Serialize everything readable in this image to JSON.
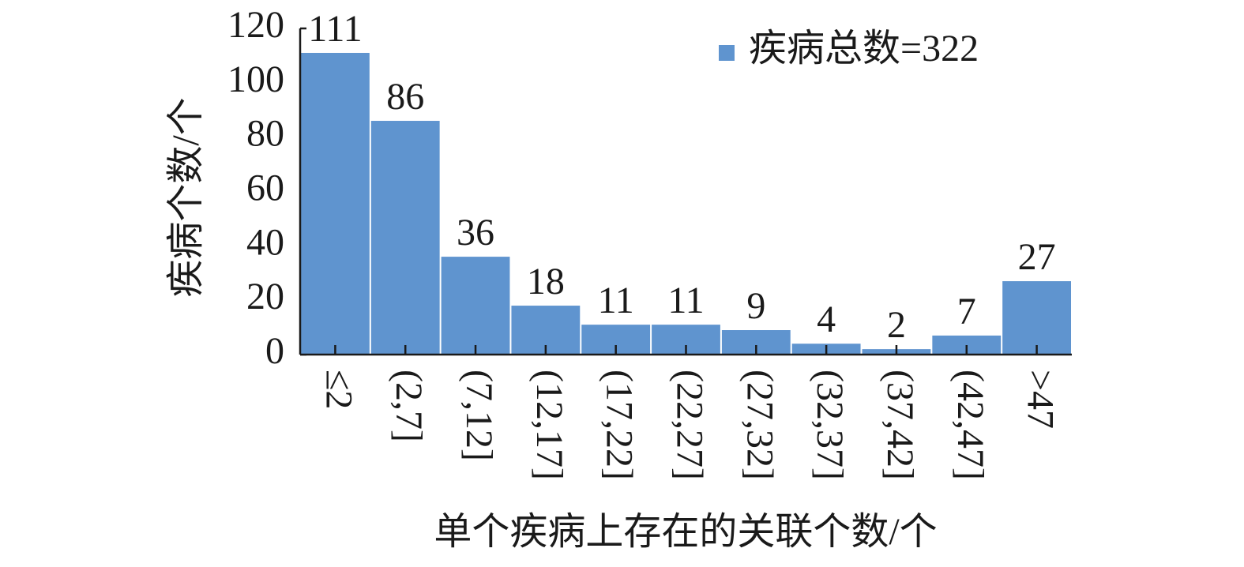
{
  "chart_data": {
    "type": "bar",
    "x_label": "单个疾病上存在的关联个数/个",
    "y_label": "疾病个数/个",
    "categories": [
      "≤2",
      "(2,7]",
      "(7,12]",
      "(12,17]",
      "(17,22]",
      "(22,27]",
      "(27,32]",
      "(32,37]",
      "(37,42]",
      "(42,47]",
      ">47"
    ],
    "series": [
      {
        "name": "疾病总数=322",
        "color": "#5f94cf",
        "values": [
          111,
          86,
          36,
          18,
          11,
          11,
          9,
          4,
          2,
          7,
          27
        ]
      }
    ],
    "ylim": [
      0,
      120
    ],
    "yticks": [
      0,
      20,
      40,
      60,
      80,
      100,
      120
    ],
    "legend": "upper right",
    "data_labels": true
  }
}
